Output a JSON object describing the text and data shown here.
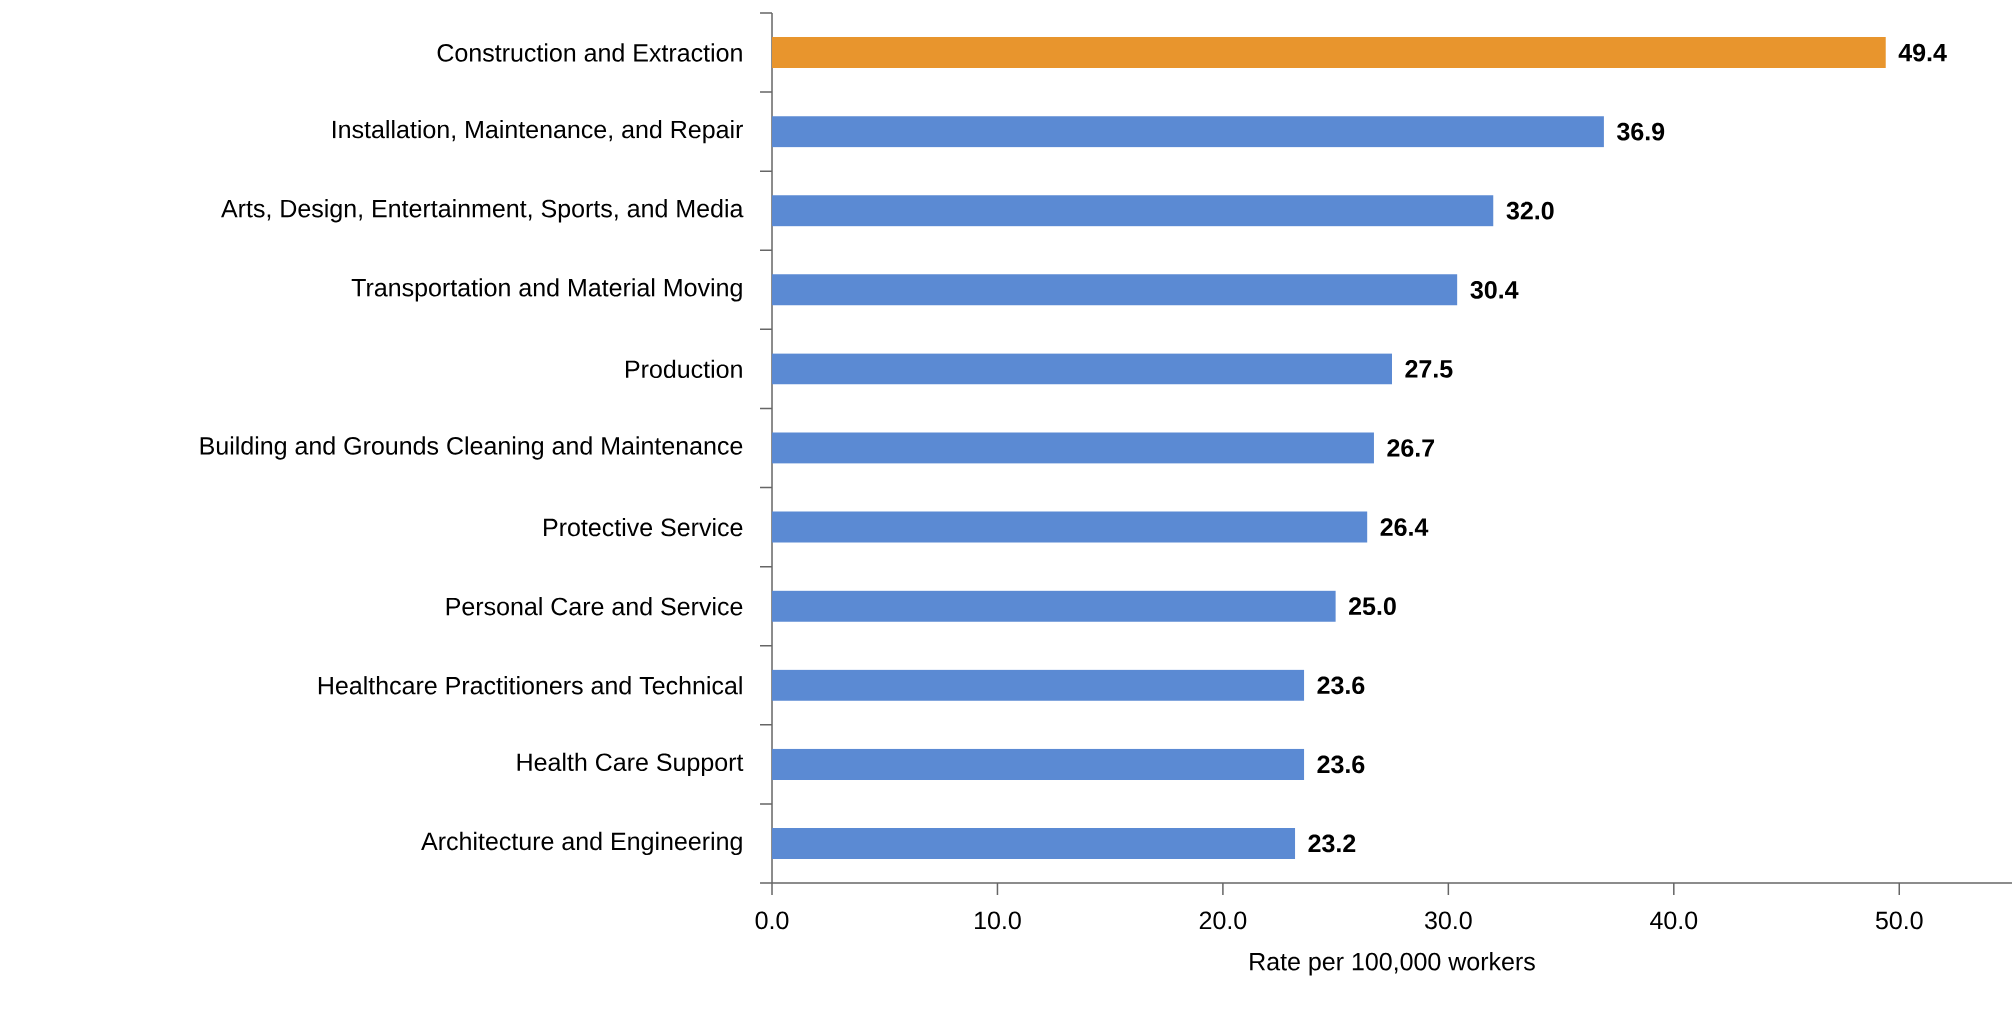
{
  "chart_data": {
    "type": "bar",
    "orientation": "horizontal",
    "xlabel": "Rate per 100,000 workers",
    "categories": [
      "Construction and Extraction",
      "Installation, Maintenance, and Repair",
      "Arts, Design, Entertainment, Sports, and Media",
      "Transportation and Material Moving",
      "Production",
      "Building and Grounds Cleaning and Maintenance",
      "Protective Service",
      "Personal Care and Service",
      "Healthcare Practitioners and Technical",
      "Health Care Support",
      "Architecture and Engineering"
    ],
    "values": [
      49.4,
      36.9,
      32.0,
      30.4,
      27.5,
      26.7,
      26.4,
      25.0,
      23.6,
      23.6,
      23.2
    ],
    "colors": [
      "#e8952d",
      "#5b8ad3",
      "#5b8ad3",
      "#5b8ad3",
      "#5b8ad3",
      "#5b8ad3",
      "#5b8ad3",
      "#5b8ad3",
      "#5b8ad3",
      "#5b8ad3",
      "#5b8ad3"
    ],
    "xlim": [
      0,
      55
    ],
    "xticks": [
      {
        "value": 0,
        "label": "0.0"
      },
      {
        "value": 10,
        "label": "10.0"
      },
      {
        "value": 20,
        "label": "20.0"
      },
      {
        "value": 30,
        "label": "30.0"
      },
      {
        "value": 40,
        "label": "40.0"
      },
      {
        "value": 50,
        "label": "50.0"
      }
    ],
    "value_labels": [
      "49.4",
      "36.9",
      "32.0",
      "30.4",
      "27.5",
      "26.7",
      "26.4",
      "25.0",
      "23.6",
      "23.6",
      "23.2"
    ],
    "grid": false
  }
}
